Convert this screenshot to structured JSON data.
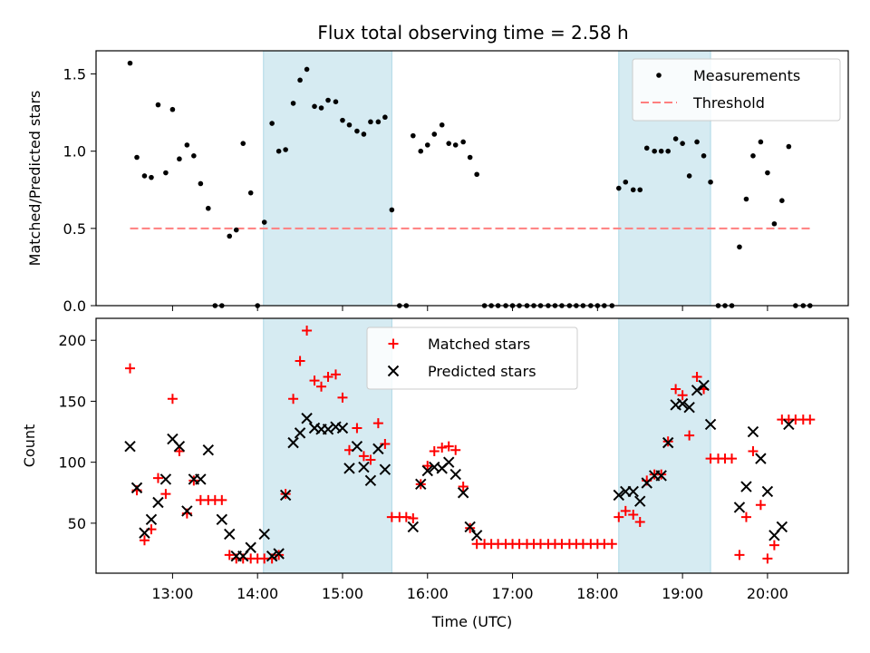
{
  "chart_data": {
    "title": "Flux total observing time = 2.58 h",
    "xlabel": "Time (UTC)",
    "x_unit": "hours UTC",
    "xlim": [
      12.1,
      20.95
    ],
    "xticks": [
      13,
      14,
      15,
      16,
      17,
      18,
      19,
      20
    ],
    "xtick_labels": [
      "13:00",
      "14:00",
      "15:00",
      "16:00",
      "17:00",
      "18:00",
      "19:00",
      "20:00"
    ],
    "shaded_intervals": [
      [
        14.07,
        15.58
      ],
      [
        18.25,
        19.33
      ]
    ],
    "shade_color": "#add8e6",
    "panels": [
      {
        "type": "scatter",
        "ylabel": "Matched/Predicted stars",
        "ylim": [
          0,
          1.65
        ],
        "yticks": [
          0.0,
          0.5,
          1.0,
          1.5
        ],
        "ytick_labels": [
          "0.0",
          "0.5",
          "1.0",
          "1.5"
        ],
        "legend": {
          "position": "top-right",
          "entries": [
            "Measurements",
            "Threshold"
          ]
        },
        "threshold": {
          "name": "Threshold",
          "value": 0.5,
          "x_range": [
            12.5,
            20.5
          ],
          "color": "#ff7f7f"
        },
        "series": [
          {
            "name": "Measurements",
            "marker": "dot",
            "color": "#000000",
            "x": [
              12.5,
              12.58,
              12.67,
              12.75,
              12.83,
              12.92,
              13.0,
              13.08,
              13.17,
              13.25,
              13.33,
              13.42,
              13.5,
              13.58,
              13.67,
              13.75,
              13.83,
              13.92,
              14.0,
              14.08,
              14.17,
              14.25,
              14.33,
              14.42,
              14.5,
              14.58,
              14.67,
              14.75,
              14.83,
              14.92,
              15.0,
              15.08,
              15.17,
              15.25,
              15.33,
              15.42,
              15.5,
              15.58,
              15.67,
              15.75,
              15.83,
              15.92,
              16.0,
              16.08,
              16.17,
              16.25,
              16.33,
              16.42,
              16.5,
              16.58,
              16.67,
              16.75,
              16.83,
              16.92,
              17.0,
              17.08,
              17.17,
              17.25,
              17.33,
              17.42,
              17.5,
              17.58,
              17.67,
              17.75,
              17.83,
              17.92,
              18.0,
              18.08,
              18.17,
              18.25,
              18.33,
              18.42,
              18.5,
              18.58,
              18.67,
              18.75,
              18.83,
              18.92,
              19.0,
              19.08,
              19.17,
              19.25,
              19.33,
              19.42,
              19.5,
              19.58,
              19.67,
              19.75,
              19.83,
              19.92,
              20.0,
              20.08,
              20.17,
              20.25,
              20.33,
              20.42,
              20.5
            ],
            "values": [
              1.57,
              0.96,
              0.84,
              0.83,
              1.3,
              0.86,
              1.27,
              0.95,
              1.04,
              0.97,
              0.79,
              0.63,
              0.0,
              0.0,
              0.45,
              0.49,
              1.05,
              0.73,
              0.0,
              0.54,
              1.18,
              1.0,
              1.01,
              1.31,
              1.46,
              1.53,
              1.29,
              1.28,
              1.33,
              1.32,
              1.2,
              1.17,
              1.13,
              1.11,
              1.19,
              1.19,
              1.22,
              0.62,
              0.0,
              0.0,
              1.1,
              1.0,
              1.04,
              1.11,
              1.17,
              1.05,
              1.04,
              1.06,
              0.96,
              0.85,
              0.0,
              0.0,
              0.0,
              0.0,
              0.0,
              0.0,
              0.0,
              0.0,
              0.0,
              0.0,
              0.0,
              0.0,
              0.0,
              0.0,
              0.0,
              0.0,
              0.0,
              0.0,
              0.0,
              0.76,
              0.8,
              0.75,
              0.75,
              1.02,
              1.0,
              1.0,
              1.0,
              1.08,
              1.05,
              0.84,
              1.06,
              0.97,
              0.8,
              0.0,
              0.0,
              0.0,
              0.38,
              0.69,
              0.97,
              1.06,
              0.86,
              0.53,
              0.68,
              1.03,
              0.0,
              0.0,
              0.0
            ]
          }
        ]
      },
      {
        "type": "scatter",
        "ylabel": "Count",
        "ylim": [
          9,
          218
        ],
        "yticks": [
          50,
          100,
          150,
          200
        ],
        "ytick_labels": [
          "50",
          "100",
          "150",
          "200"
        ],
        "legend": {
          "position": "top-center",
          "entries": [
            "Matched stars",
            "Predicted stars"
          ]
        },
        "series": [
          {
            "name": "Matched stars",
            "marker": "plus",
            "color": "#ff0000",
            "x": [
              12.5,
              12.58,
              12.67,
              12.75,
              12.83,
              12.92,
              13.0,
              13.08,
              13.17,
              13.25,
              13.33,
              13.42,
              13.5,
              13.58,
              13.67,
              13.75,
              13.83,
              13.92,
              14.0,
              14.08,
              14.17,
              14.25,
              14.33,
              14.42,
              14.5,
              14.58,
              14.67,
              14.75,
              14.83,
              14.92,
              15.0,
              15.08,
              15.17,
              15.25,
              15.33,
              15.42,
              15.5,
              15.58,
              15.67,
              15.75,
              15.83,
              15.92,
              16.0,
              16.08,
              16.17,
              16.25,
              16.33,
              16.42,
              16.5,
              16.58,
              16.67,
              16.75,
              16.83,
              16.92,
              17.0,
              17.08,
              17.17,
              17.25,
              17.33,
              17.42,
              17.5,
              17.58,
              17.67,
              17.75,
              17.83,
              17.92,
              18.0,
              18.08,
              18.17,
              18.25,
              18.33,
              18.42,
              18.5,
              18.58,
              18.67,
              18.75,
              18.83,
              18.92,
              19.0,
              19.08,
              19.17,
              19.25,
              19.33,
              19.42,
              19.5,
              19.58,
              19.67,
              19.75,
              19.83,
              19.92,
              20.0,
              20.08,
              20.17,
              20.25,
              20.33,
              20.42,
              20.5
            ],
            "values": [
              177,
              77,
              36,
              45,
              87,
              74,
              152,
              109,
              58,
              85,
              69,
              69,
              69,
              69,
              24,
              21,
              21,
              21,
              21,
              21,
              21,
              24,
              74,
              152,
              183,
              208,
              167,
              162,
              170,
              172,
              153,
              110,
              128,
              105,
              102,
              132,
              115,
              55,
              55,
              55,
              54,
              82,
              97,
              109,
              112,
              113,
              110,
              80,
              46,
              33,
              33,
              33,
              33,
              33,
              33,
              33,
              33,
              33,
              33,
              33,
              33,
              33,
              33,
              33,
              33,
              33,
              33,
              33,
              33,
              55,
              60,
              57,
              51,
              85,
              90,
              90,
              117,
              160,
              155,
              122,
              170,
              160,
              103,
              103,
              103,
              103,
              24,
              55,
              109,
              65,
              21,
              32,
              135,
              135,
              135,
              135,
              135
            ]
          },
          {
            "name": "Predicted stars",
            "marker": "x",
            "color": "#000000",
            "x": [
              12.5,
              12.58,
              12.67,
              12.75,
              12.83,
              12.92,
              13.0,
              13.08,
              13.17,
              13.25,
              13.33,
              13.42,
              13.58,
              13.67,
              13.75,
              13.83,
              13.92,
              14.08,
              14.17,
              14.25,
              14.33,
              14.42,
              14.5,
              14.58,
              14.67,
              14.75,
              14.83,
              14.92,
              15.0,
              15.08,
              15.17,
              15.25,
              15.33,
              15.42,
              15.5,
              15.83,
              15.92,
              16.0,
              16.08,
              16.17,
              16.25,
              16.33,
              16.42,
              16.5,
              16.58,
              18.25,
              18.33,
              18.42,
              18.5,
              18.58,
              18.67,
              18.75,
              18.83,
              18.92,
              19.0,
              19.08,
              19.17,
              19.25,
              19.33,
              19.67,
              19.75,
              19.83,
              19.92,
              20.0,
              20.08,
              20.17,
              20.25
            ],
            "values": [
              113,
              79,
              42,
              53,
              67,
              86,
              119,
              113,
              60,
              86,
              86,
              110,
              53,
              41,
              23,
              23,
              30,
              41,
              23,
              25,
              73,
              116,
              124,
              136,
              128,
              127,
              127,
              129,
              128,
              95,
              113,
              96,
              85,
              111,
              94,
              47,
              82,
              93,
              96,
              95,
              100,
              90,
              75,
              47,
              40,
              73,
              76,
              76,
              68,
              83,
              89,
              89,
              116,
              147,
              148,
              145,
              159,
              163,
              131,
              63,
              80,
              125,
              103,
              76,
              40,
              47,
              131
            ]
          }
        ]
      }
    ]
  }
}
